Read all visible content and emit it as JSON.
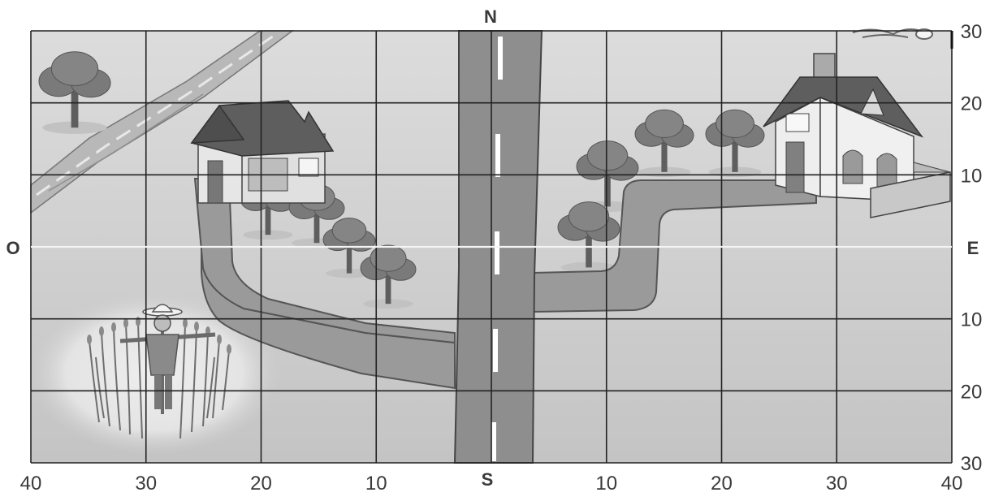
{
  "compass": {
    "north": "N",
    "south": "S",
    "west": "O",
    "east": "E"
  },
  "bottom_axis": {
    "ticks": [
      "40",
      "30",
      "20",
      "10",
      "10",
      "20",
      "30",
      "40"
    ]
  },
  "right_axis": {
    "ticks": [
      "30",
      "20",
      "10",
      "10",
      "20",
      "30"
    ]
  },
  "colors": {
    "background": "#d6d6d6",
    "grid": "#222222",
    "road": "#8c8c8c",
    "path": "#999999",
    "river": "#b5b5b5",
    "tree": "#7a7a7a",
    "trunk": "#5e5e5e",
    "roof": "#5a5a5a",
    "wall": "#f0f0f0"
  }
}
